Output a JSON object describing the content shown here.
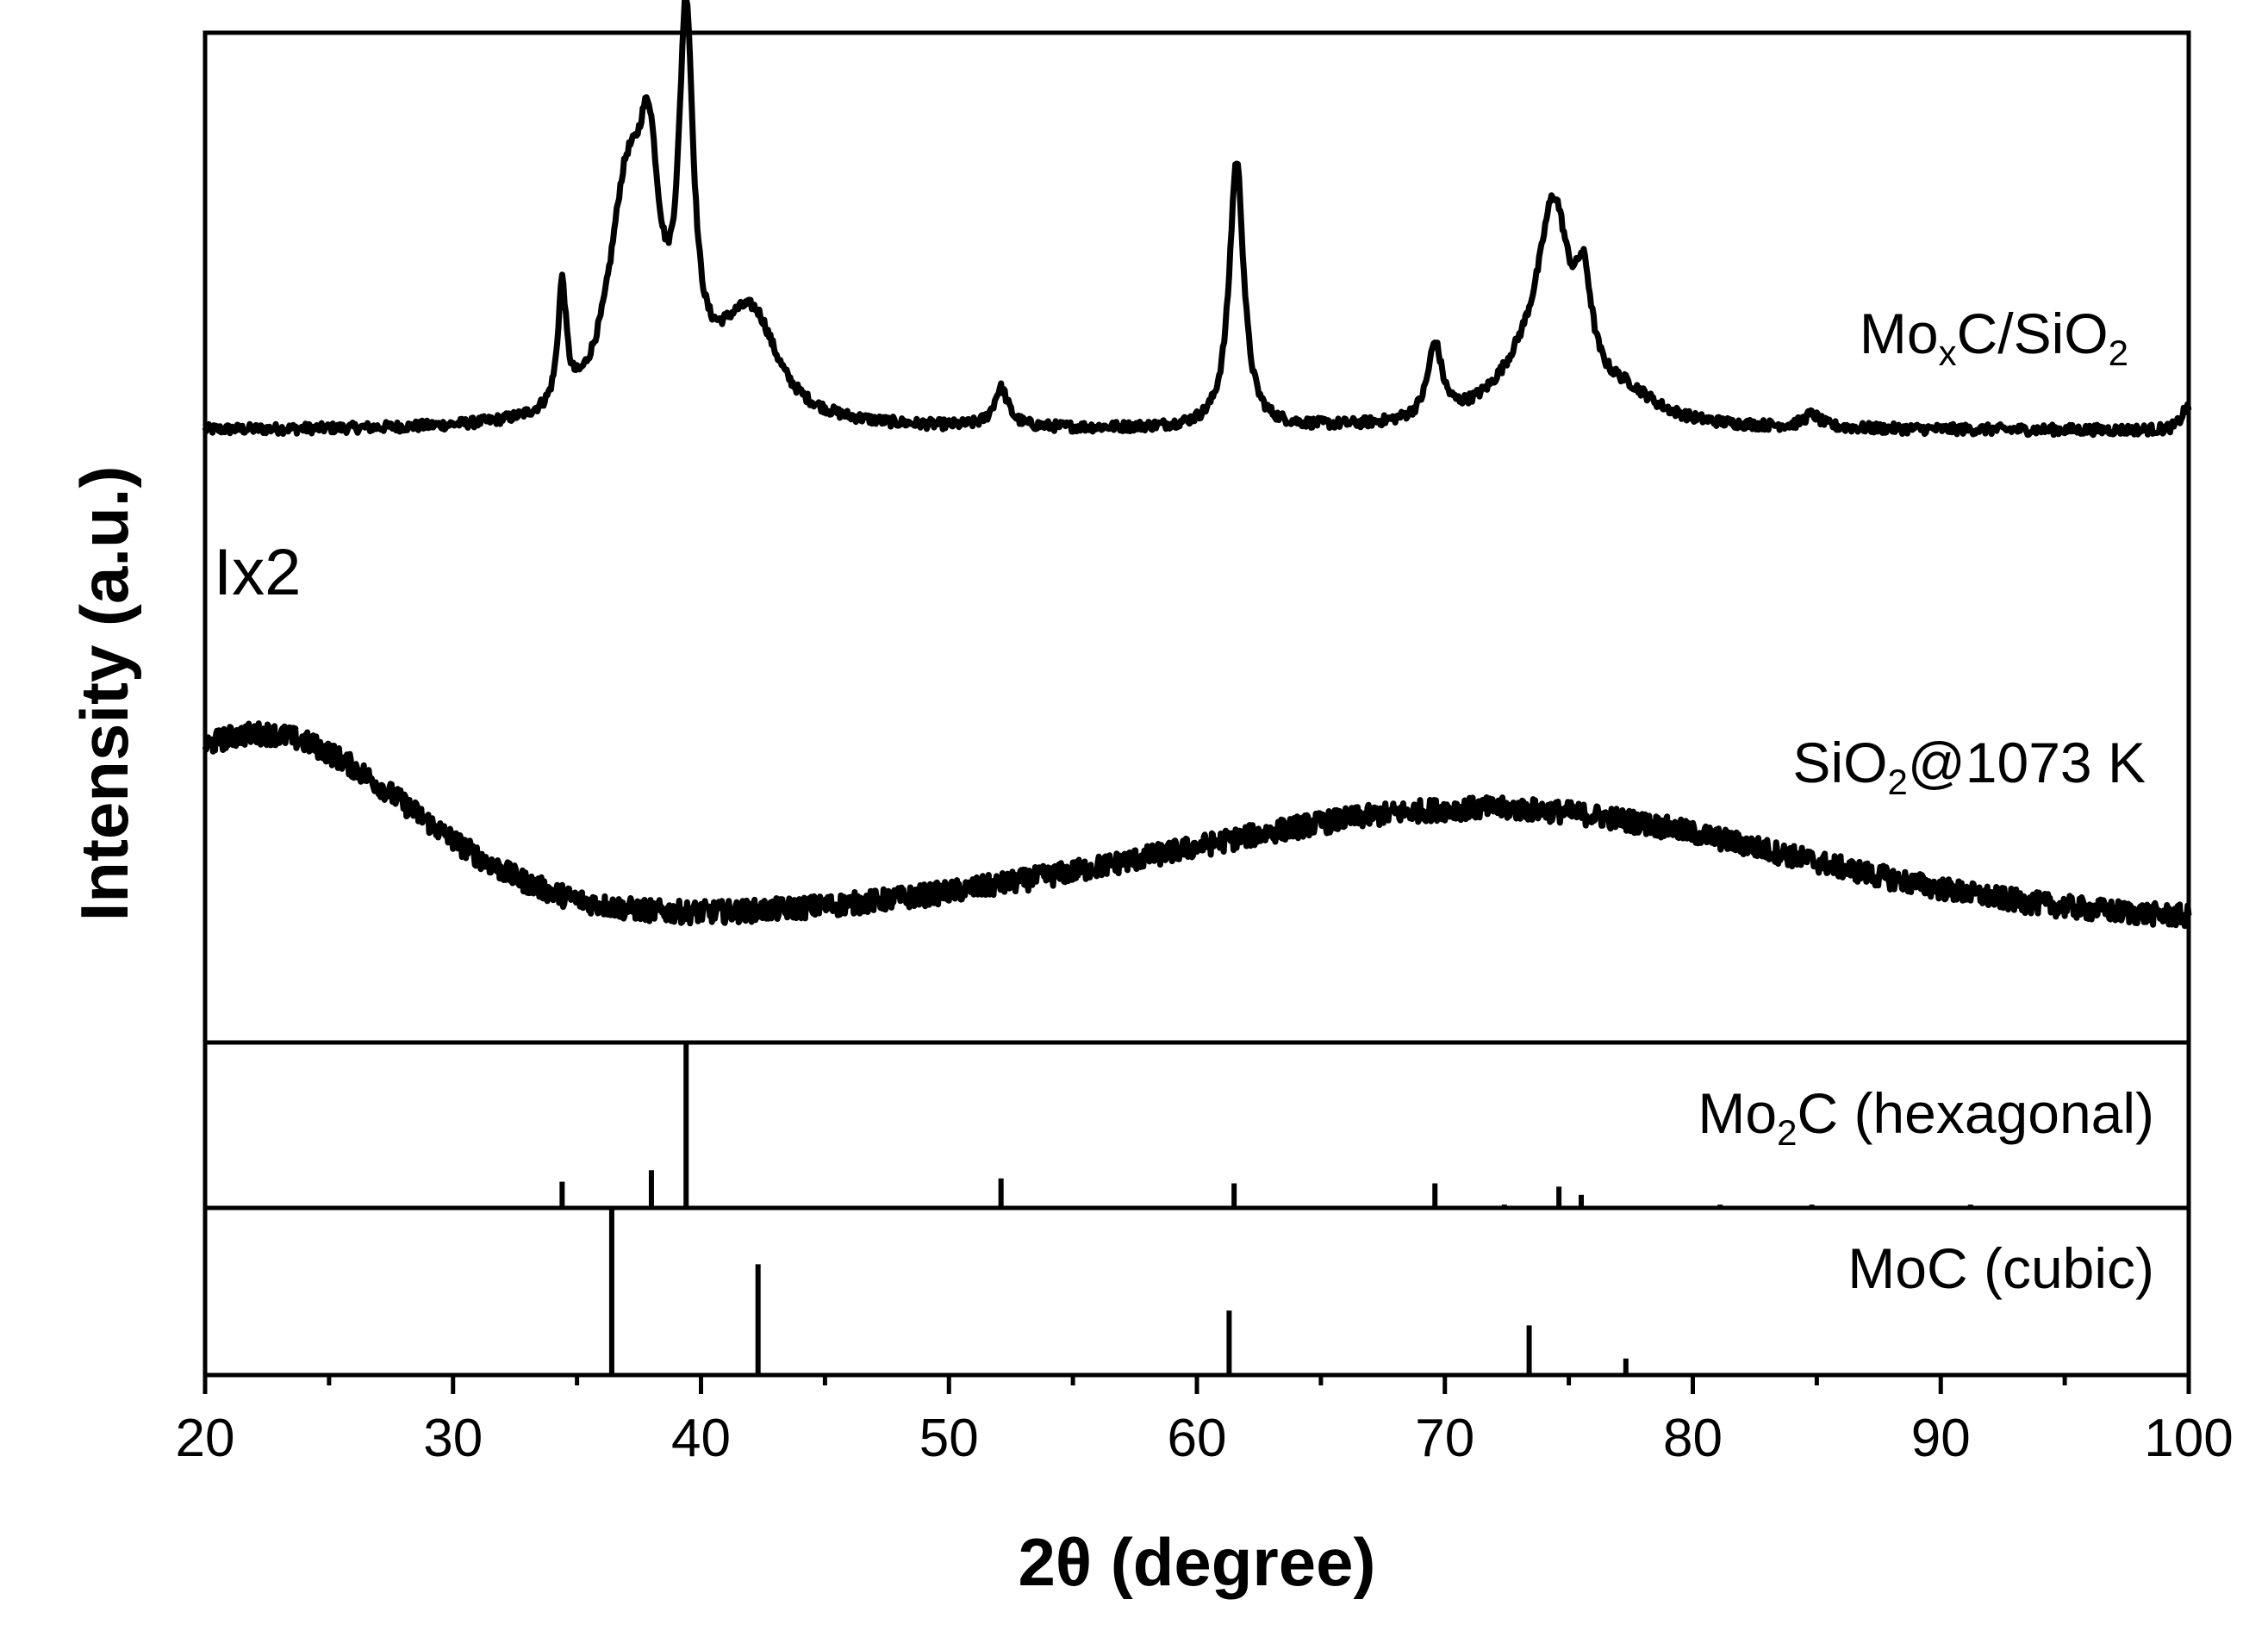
{
  "chart_data": {
    "type": "line",
    "xlabel_prefix": "2θ",
    "xlabel_suffix": " (degree)",
    "ylabel": "Intensity (a.u.)",
    "xlim": [
      20,
      100
    ],
    "x_ticks": [
      20,
      30,
      40,
      50,
      60,
      70,
      80,
      90,
      100
    ],
    "x_ticklabels": [
      "20",
      "30",
      "40",
      "50",
      "60",
      "70",
      "80",
      "90",
      "100"
    ],
    "annotation": "Ix2",
    "series": [
      {
        "name": "MoxC/SiO2",
        "label_parts": [
          {
            "text": "Mo",
            "sub": false
          },
          {
            "text": "x",
            "sub": true
          },
          {
            "text": "C/SiO",
            "sub": false
          },
          {
            "text": "2",
            "sub": true
          }
        ],
        "color": "#000000",
        "baseline": 0.03,
        "noise": 0.006,
        "peaks": [
          {
            "x": 34.4,
            "h": 0.14,
            "w": 0.2
          },
          {
            "x": 37.0,
            "h": 0.25,
            "w": 0.9
          },
          {
            "x": 37.9,
            "h": 0.22,
            "w": 0.5
          },
          {
            "x": 39.4,
            "h": 0.42,
            "w": 0.35
          },
          {
            "x": 41.5,
            "h": 0.08,
            "w": 1.5
          },
          {
            "x": 42.3,
            "h": 0.06,
            "w": 1.0
          },
          {
            "x": 52.1,
            "h": 0.045,
            "w": 0.35
          },
          {
            "x": 61.6,
            "h": 0.31,
            "w": 0.35
          },
          {
            "x": 69.6,
            "h": 0.085,
            "w": 0.35
          },
          {
            "x": 74.4,
            "h": 0.21,
            "w": 0.75
          },
          {
            "x": 73.4,
            "h": 0.06,
            "w": 1.7
          },
          {
            "x": 75.6,
            "h": 0.11,
            "w": 0.4
          },
          {
            "x": 77.3,
            "h": 0.03,
            "w": 1.5
          },
          {
            "x": 84.8,
            "h": 0.015,
            "w": 0.4
          },
          {
            "x": 99.9,
            "h": 0.025,
            "w": 0.25
          }
        ]
      },
      {
        "name": "SiO2@1073 K",
        "label_parts": [
          {
            "text": "SiO",
            "sub": false
          },
          {
            "text": "2",
            "sub": true
          },
          {
            "text": "@1073 K",
            "sub": false
          }
        ],
        "color": "#000000",
        "baseline": 0.0,
        "noise": 0.025,
        "broad": [
          {
            "x": 22.2,
            "h": 0.42,
            "w": 6.0
          },
          {
            "x": 74.0,
            "h": 0.2,
            "w": 11.0
          },
          {
            "x": 62.0,
            "h": 0.08,
            "w": 12.0
          }
        ]
      }
    ],
    "references": [
      {
        "name": "Mo2C (hexagonal)",
        "label_parts": [
          {
            "text": "Mo",
            "sub": false
          },
          {
            "text": "2",
            "sub": true
          },
          {
            "text": "C (hexagonal)",
            "sub": false
          }
        ],
        "lines": [
          {
            "x": 34.4,
            "i": 16
          },
          {
            "x": 38.0,
            "i": 23
          },
          {
            "x": 39.4,
            "i": 100
          },
          {
            "x": 52.1,
            "i": 18
          },
          {
            "x": 61.5,
            "i": 15
          },
          {
            "x": 69.6,
            "i": 15
          },
          {
            "x": 72.4,
            "i": 2
          },
          {
            "x": 74.6,
            "i": 13
          },
          {
            "x": 75.5,
            "i": 8
          },
          {
            "x": 81.1,
            "i": 2
          },
          {
            "x": 84.8,
            "i": 2
          },
          {
            "x": 91.2,
            "i": 2
          }
        ]
      },
      {
        "name": "MoC (cubic)",
        "label_parts": [
          {
            "text": "MoC (cubic)",
            "sub": false
          }
        ],
        "lines": [
          {
            "x": 36.4,
            "i": 100
          },
          {
            "x": 42.3,
            "i": 67
          },
          {
            "x": 61.3,
            "i": 39
          },
          {
            "x": 73.4,
            "i": 30
          },
          {
            "x": 77.3,
            "i": 10
          }
        ]
      }
    ]
  }
}
